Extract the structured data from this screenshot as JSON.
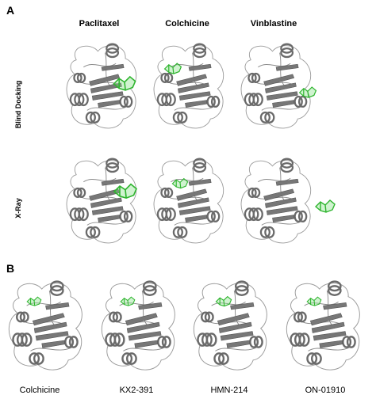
{
  "panel_a": {
    "label": "A",
    "columns": [
      "Paclitaxel",
      "Colchicine",
      "Vinblastine"
    ],
    "rows": [
      "Blind Docking",
      "X-Ray"
    ]
  },
  "panel_b": {
    "label": "B",
    "labels": [
      "Colchicine",
      "KX2-391",
      "HMN-214",
      "ON-01910"
    ]
  }
}
